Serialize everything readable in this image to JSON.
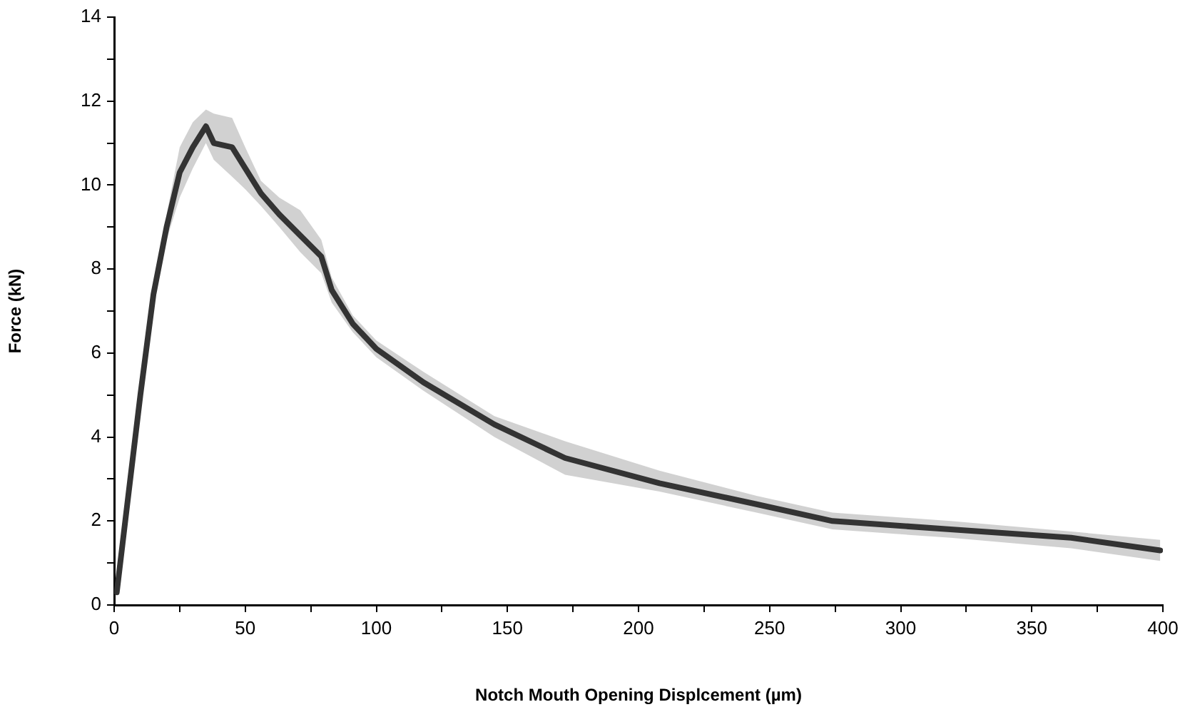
{
  "chart_data": {
    "type": "line",
    "xlabel": "Notch Mouth Opening Displcement (µm)",
    "ylabel": "Force (kN)",
    "xlim": [
      0,
      400
    ],
    "xticks": [
      0,
      {
        "value": 25,
        "label": null
      },
      50,
      {
        "value": 75,
        "label": null
      },
      100,
      {
        "value": 125,
        "label": null
      },
      150,
      {
        "value": 175,
        "label": null
      },
      200,
      {
        "value": 225,
        "label": null
      },
      250,
      {
        "value": 275,
        "label": null
      },
      300,
      {
        "value": 325,
        "label": null
      },
      350,
      {
        "value": 375,
        "label": null
      },
      400
    ],
    "ylim": [
      0,
      14
    ],
    "yticks": [
      0,
      {
        "value": 1,
        "label": null
      },
      2,
      {
        "value": 3,
        "label": null
      },
      4,
      {
        "value": 5,
        "label": null
      },
      6,
      {
        "value": 7,
        "label": null
      },
      8,
      {
        "value": 9,
        "label": null
      },
      10,
      {
        "value": 11,
        "label": null
      },
      12,
      {
        "value": 13,
        "label": null
      },
      14
    ],
    "marker": "none",
    "legend": false,
    "series": [
      {
        "color": "#333333",
        "x": [
          1,
          5,
          10,
          15,
          20,
          25,
          30,
          35,
          38,
          45,
          50,
          56,
          63,
          71,
          79,
          83,
          91,
          100,
          118,
          145,
          172,
          208,
          245,
          274,
          319,
          365,
          399
        ],
        "values": [
          0.3,
          2.4,
          5.0,
          7.4,
          9.0,
          10.3,
          10.9,
          11.4,
          11.0,
          10.9,
          10.4,
          9.8,
          9.3,
          8.8,
          8.3,
          7.5,
          6.7,
          6.1,
          5.3,
          4.3,
          3.5,
          2.9,
          2.4,
          2.0,
          1.8,
          1.6,
          1.3
        ],
        "lower": [
          null,
          null,
          null,
          null,
          8.7,
          9.7,
          10.4,
          11.0,
          10.6,
          10.2,
          9.9,
          9.5,
          9.0,
          8.4,
          7.9,
          7.2,
          6.5,
          5.9,
          5.1,
          4.0,
          3.1,
          2.7,
          2.2,
          1.8,
          1.6,
          1.35,
          1.05
        ],
        "upper": [
          null,
          null,
          null,
          null,
          9.3,
          10.9,
          11.5,
          11.8,
          11.7,
          11.6,
          10.9,
          10.1,
          9.7,
          9.4,
          8.7,
          7.8,
          6.9,
          6.3,
          5.55,
          4.5,
          3.9,
          3.2,
          2.6,
          2.2,
          2.0,
          1.75,
          1.55
        ]
      }
    ]
  }
}
